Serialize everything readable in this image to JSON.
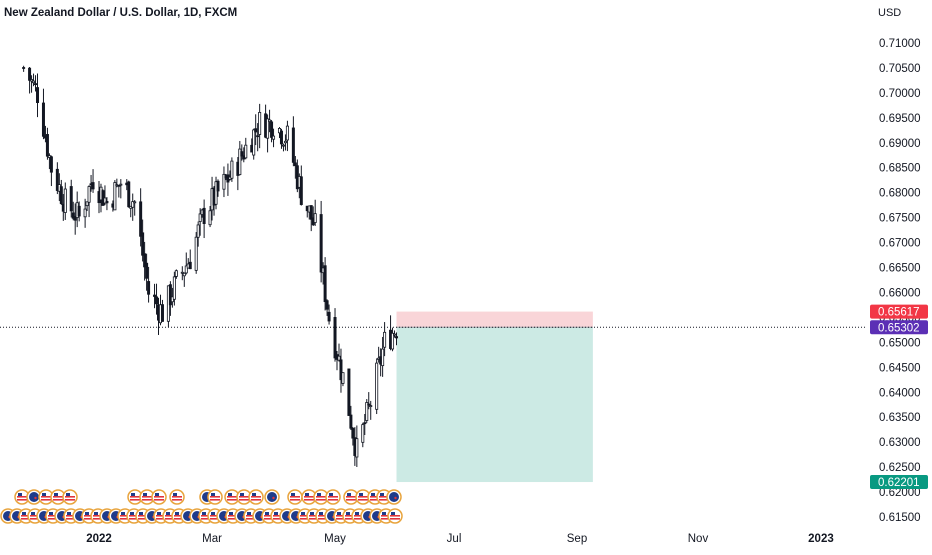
{
  "header": {
    "title": "New Zealand Dollar / U.S. Dollar, 1D, FXCM",
    "currency": "USD"
  },
  "colors": {
    "background": "#ffffff",
    "candle": "#131722",
    "stop_zone": "#f9d5d8",
    "target_zone": "#cceae4",
    "stop_badge": "#f23645",
    "price_badge": "#5b2fb5",
    "target_badge": "#089981",
    "text": "#131722"
  },
  "chart_data": {
    "type": "candlestick",
    "title": "New Zealand Dollar / U.S. Dollar, 1D, FXCM",
    "ylabel": "USD",
    "ylim": [
      0.6133,
      0.7164
    ],
    "y_ticks": [
      "0.71000",
      "0.70500",
      "0.70000",
      "0.69500",
      "0.69000",
      "0.68500",
      "0.68000",
      "0.67500",
      "0.67000",
      "0.66500",
      "0.66000",
      "0.65500",
      "0.65000",
      "0.64500",
      "0.64000",
      "0.63500",
      "0.63000",
      "0.62500",
      "0.62000",
      "0.61500"
    ],
    "x_ticks": [
      {
        "label": "2022",
        "date": "2022-01-03"
      },
      {
        "label": "Mar",
        "date": "2022-03-01"
      },
      {
        "label": "May",
        "date": "2022-05-02"
      },
      {
        "label": "Jul",
        "date": "2022-07-01"
      },
      {
        "label": "Sep",
        "date": "2022-09-01"
      },
      {
        "label": "Nov",
        "date": "2022-11-01"
      },
      {
        "label": "2023",
        "date": "2023-01-02"
      }
    ],
    "series": [
      {
        "date": "2021-11-26",
        "close": 0.705
      },
      {
        "date": "2021-12-03",
        "close": 0.7
      },
      {
        "date": "2021-12-10",
        "close": 0.685
      },
      {
        "date": "2021-12-17",
        "close": 0.678
      },
      {
        "date": "2021-12-24",
        "close": 0.675
      },
      {
        "date": "2021-12-31",
        "close": 0.683
      },
      {
        "date": "2022-01-07",
        "close": 0.678
      },
      {
        "date": "2022-01-14",
        "close": 0.682
      },
      {
        "date": "2022-01-21",
        "close": 0.678
      },
      {
        "date": "2022-01-28",
        "close": 0.66
      },
      {
        "date": "2022-02-04",
        "close": 0.656
      },
      {
        "date": "2022-02-11",
        "close": 0.662
      },
      {
        "date": "2022-02-18",
        "close": 0.667
      },
      {
        "date": "2022-02-25",
        "close": 0.676
      },
      {
        "date": "2022-03-04",
        "close": 0.68
      },
      {
        "date": "2022-03-11",
        "close": 0.684
      },
      {
        "date": "2022-03-18",
        "close": 0.689
      },
      {
        "date": "2022-03-25",
        "close": 0.694
      },
      {
        "date": "2022-04-01",
        "close": 0.694
      },
      {
        "date": "2022-04-08",
        "close": 0.691
      },
      {
        "date": "2022-04-15",
        "close": 0.68
      },
      {
        "date": "2022-04-22",
        "close": 0.673
      },
      {
        "date": "2022-04-29",
        "close": 0.655
      },
      {
        "date": "2022-05-06",
        "close": 0.643
      },
      {
        "date": "2022-05-13",
        "close": 0.628
      },
      {
        "date": "2022-05-20",
        "close": 0.638
      },
      {
        "date": "2022-05-27",
        "close": 0.65
      },
      {
        "date": "2022-06-02",
        "close": 0.653
      }
    ],
    "position": {
      "type": "short",
      "entry": 0.65302,
      "stop": 0.65617,
      "target": 0.62201,
      "start_date": "2022-06-02",
      "end_date": "2022-09-09"
    },
    "price_labels": [
      {
        "role": "stop",
        "value": "0.65617"
      },
      {
        "role": "current",
        "value": "0.65302"
      },
      {
        "role": "target",
        "value": "0.62201"
      }
    ]
  }
}
